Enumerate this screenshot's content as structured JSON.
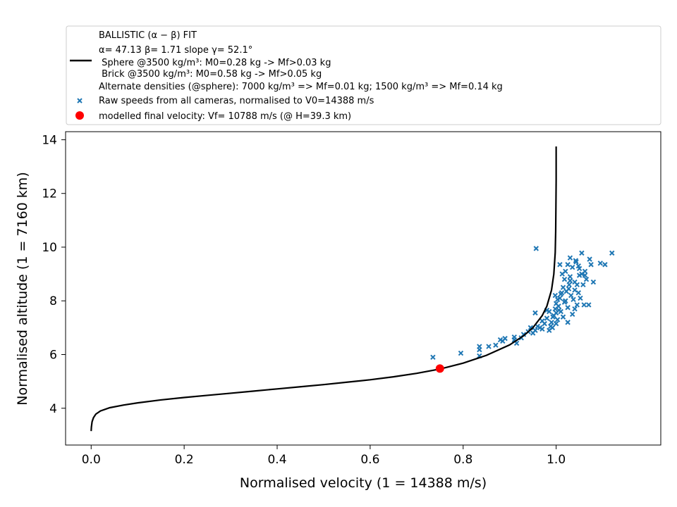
{
  "chart_data": {
    "type": "scatter",
    "xlabel": "Normalised velocity (1 = 14388 m/s)",
    "ylabel": "Normalised altitude (1 = 7160 km)",
    "xlim": [
      -0.055,
      1.225
    ],
    "ylim": [
      2.63,
      14.3
    ],
    "xticks": [
      "0.0",
      "0.2",
      "0.4",
      "0.6",
      "0.8",
      "1.0"
    ],
    "yticks": [
      "4",
      "6",
      "8",
      "10",
      "12",
      "14"
    ],
    "grid": false,
    "legend_position": "top",
    "legend": {
      "fit_lines": [
        "BALLISTIC (α − β) FIT",
        "α= 47.13     β= 1.71     slope γ= 52.1°",
        " Sphere @3500 kg/m³: M0=0.28 kg -> Mf>0.03 kg",
        " Brick @3500 kg/m³: M0=0.58 kg -> Mf>0.05 kg",
        "Alternate densities (@sphere): 7000 kg/m³ => Mf=0.01 kg; 1500 kg/m³ => Mf=0.14 kg"
      ],
      "raw_label": "Raw speeds from all cameras, normalised to V0=14388 m/s",
      "final_label": "modelled final velocity: Vf= 10788 m/s (@ H=39.3 km)"
    },
    "colors": {
      "fit": "#000000",
      "raw": "#1f77b4",
      "final": "#ff0000"
    },
    "fit_curve": {
      "name": "BALLISTIC (α − β) FIT",
      "points": [
        [
          0.0,
          3.15
        ],
        [
          0.0005,
          3.3
        ],
        [
          0.002,
          3.5
        ],
        [
          0.005,
          3.65
        ],
        [
          0.01,
          3.78
        ],
        [
          0.02,
          3.9
        ],
        [
          0.04,
          4.02
        ],
        [
          0.07,
          4.12
        ],
        [
          0.1,
          4.2
        ],
        [
          0.15,
          4.31
        ],
        [
          0.2,
          4.4
        ],
        [
          0.25,
          4.48
        ],
        [
          0.3,
          4.56
        ],
        [
          0.35,
          4.64
        ],
        [
          0.4,
          4.72
        ],
        [
          0.45,
          4.8
        ],
        [
          0.5,
          4.88
        ],
        [
          0.55,
          4.97
        ],
        [
          0.6,
          5.06
        ],
        [
          0.65,
          5.17
        ],
        [
          0.7,
          5.3
        ],
        [
          0.75,
          5.46
        ],
        [
          0.8,
          5.68
        ],
        [
          0.85,
          5.97
        ],
        [
          0.9,
          6.36
        ],
        [
          0.93,
          6.7
        ],
        [
          0.95,
          7.0
        ],
        [
          0.97,
          7.45
        ],
        [
          0.98,
          7.8
        ],
        [
          0.99,
          8.4
        ],
        [
          0.995,
          9.0
        ],
        [
          0.998,
          9.8
        ],
        [
          0.999,
          10.6
        ],
        [
          0.9995,
          11.5
        ],
        [
          1.0,
          12.5
        ],
        [
          1.0,
          13.75
        ]
      ]
    },
    "raw_points": [
      [
        0.957,
        9.95
      ],
      [
        1.12,
        9.78
      ],
      [
        1.055,
        9.78
      ],
      [
        0.735,
        5.9
      ],
      [
        0.795,
        6.05
      ],
      [
        0.835,
        5.95
      ],
      [
        0.835,
        6.18
      ],
      [
        0.835,
        6.3
      ],
      [
        0.855,
        6.3
      ],
      [
        0.87,
        6.35
      ],
      [
        0.88,
        6.55
      ],
      [
        0.885,
        6.5
      ],
      [
        0.89,
        6.6
      ],
      [
        0.91,
        6.55
      ],
      [
        0.91,
        6.65
      ],
      [
        0.915,
        6.42
      ],
      [
        0.925,
        6.62
      ],
      [
        0.93,
        6.75
      ],
      [
        0.94,
        6.85
      ],
      [
        0.945,
        7.0
      ],
      [
        0.95,
        6.8
      ],
      [
        0.955,
        6.9
      ],
      [
        0.955,
        7.55
      ],
      [
        0.96,
        7.05
      ],
      [
        0.965,
        7.0
      ],
      [
        0.97,
        6.95
      ],
      [
        0.97,
        7.25
      ],
      [
        0.975,
        7.15
      ],
      [
        0.98,
        7.35
      ],
      [
        0.98,
        7.65
      ],
      [
        0.985,
        6.9
      ],
      [
        0.988,
        7.05
      ],
      [
        0.99,
        7.2
      ],
      [
        0.992,
        7.0
      ],
      [
        0.995,
        7.45
      ],
      [
        0.998,
        7.7
      ],
      [
        1.0,
        7.55
      ],
      [
        1.0,
        7.9
      ],
      [
        1.003,
        7.3
      ],
      [
        1.005,
        7.8
      ],
      [
        1.008,
        8.1
      ],
      [
        1.01,
        7.6
      ],
      [
        1.012,
        8.3
      ],
      [
        1.015,
        8.5
      ],
      [
        1.015,
        7.4
      ],
      [
        1.018,
        8.8
      ],
      [
        1.02,
        9.1
      ],
      [
        1.02,
        8.0
      ],
      [
        1.022,
        8.35
      ],
      [
        1.025,
        9.35
      ],
      [
        1.025,
        7.75
      ],
      [
        1.028,
        8.6
      ],
      [
        1.03,
        9.6
      ],
      [
        1.03,
        8.9
      ],
      [
        1.032,
        8.2
      ],
      [
        1.035,
        9.25
      ],
      [
        1.035,
        7.5
      ],
      [
        1.04,
        8.7
      ],
      [
        1.04,
        8.4
      ],
      [
        1.042,
        9.5
      ],
      [
        1.045,
        8.6
      ],
      [
        1.045,
        7.85
      ],
      [
        1.048,
        8.3
      ],
      [
        1.05,
        9.2
      ],
      [
        1.05,
        8.95
      ],
      [
        1.052,
        8.1
      ],
      [
        1.055,
        9.0
      ],
      [
        1.058,
        8.6
      ],
      [
        1.06,
        7.85
      ],
      [
        1.062,
        9.1
      ],
      [
        1.065,
        8.8
      ],
      [
        1.07,
        7.85
      ],
      [
        1.072,
        9.55
      ],
      [
        1.075,
        9.35
      ],
      [
        1.08,
        8.7
      ],
      [
        1.095,
        9.4
      ],
      [
        1.105,
        9.35
      ],
      [
        1.008,
        9.35
      ],
      [
        1.013,
        9.0
      ],
      [
        1.018,
        7.95
      ],
      [
        1.003,
        8.05
      ],
      [
        0.998,
        8.2
      ],
      [
        1.006,
        7.65
      ],
      [
        1.027,
        8.45
      ],
      [
        1.037,
        8.05
      ],
      [
        1.043,
        9.45
      ],
      [
        1.048,
        9.3
      ],
      [
        1.062,
        8.95
      ],
      [
        1.0,
        7.15
      ],
      [
        0.993,
        7.4
      ],
      [
        0.985,
        7.6
      ],
      [
        1.01,
        8.25
      ],
      [
        1.025,
        7.2
      ],
      [
        1.03,
        8.75
      ],
      [
        1.04,
        7.7
      ]
    ],
    "final_point": {
      "x": 0.75,
      "y": 5.48
    }
  }
}
